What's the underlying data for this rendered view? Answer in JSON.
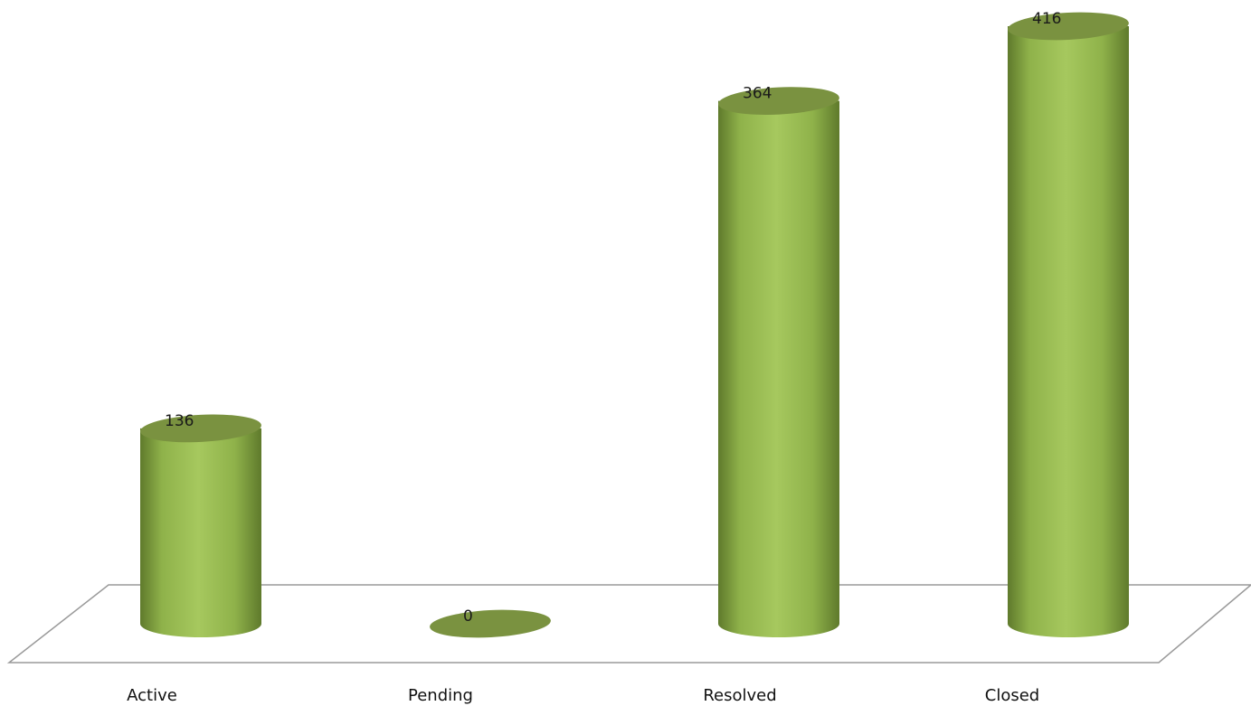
{
  "chart_data": {
    "type": "bar",
    "style": "3d-cylinder",
    "categories": [
      "Active",
      "Pending",
      "Resolved",
      "Closed"
    ],
    "values": [
      136,
      0,
      364,
      416
    ],
    "ylim": [
      0,
      416
    ],
    "grid": false,
    "legend": "none",
    "colors": {
      "bar_light": "#a6c85e",
      "bar_mid": "#8fb24a",
      "bar_dark": "#5f7a2c",
      "bar_top": "#7a9240",
      "floor_line": "#9a9a9a"
    }
  }
}
